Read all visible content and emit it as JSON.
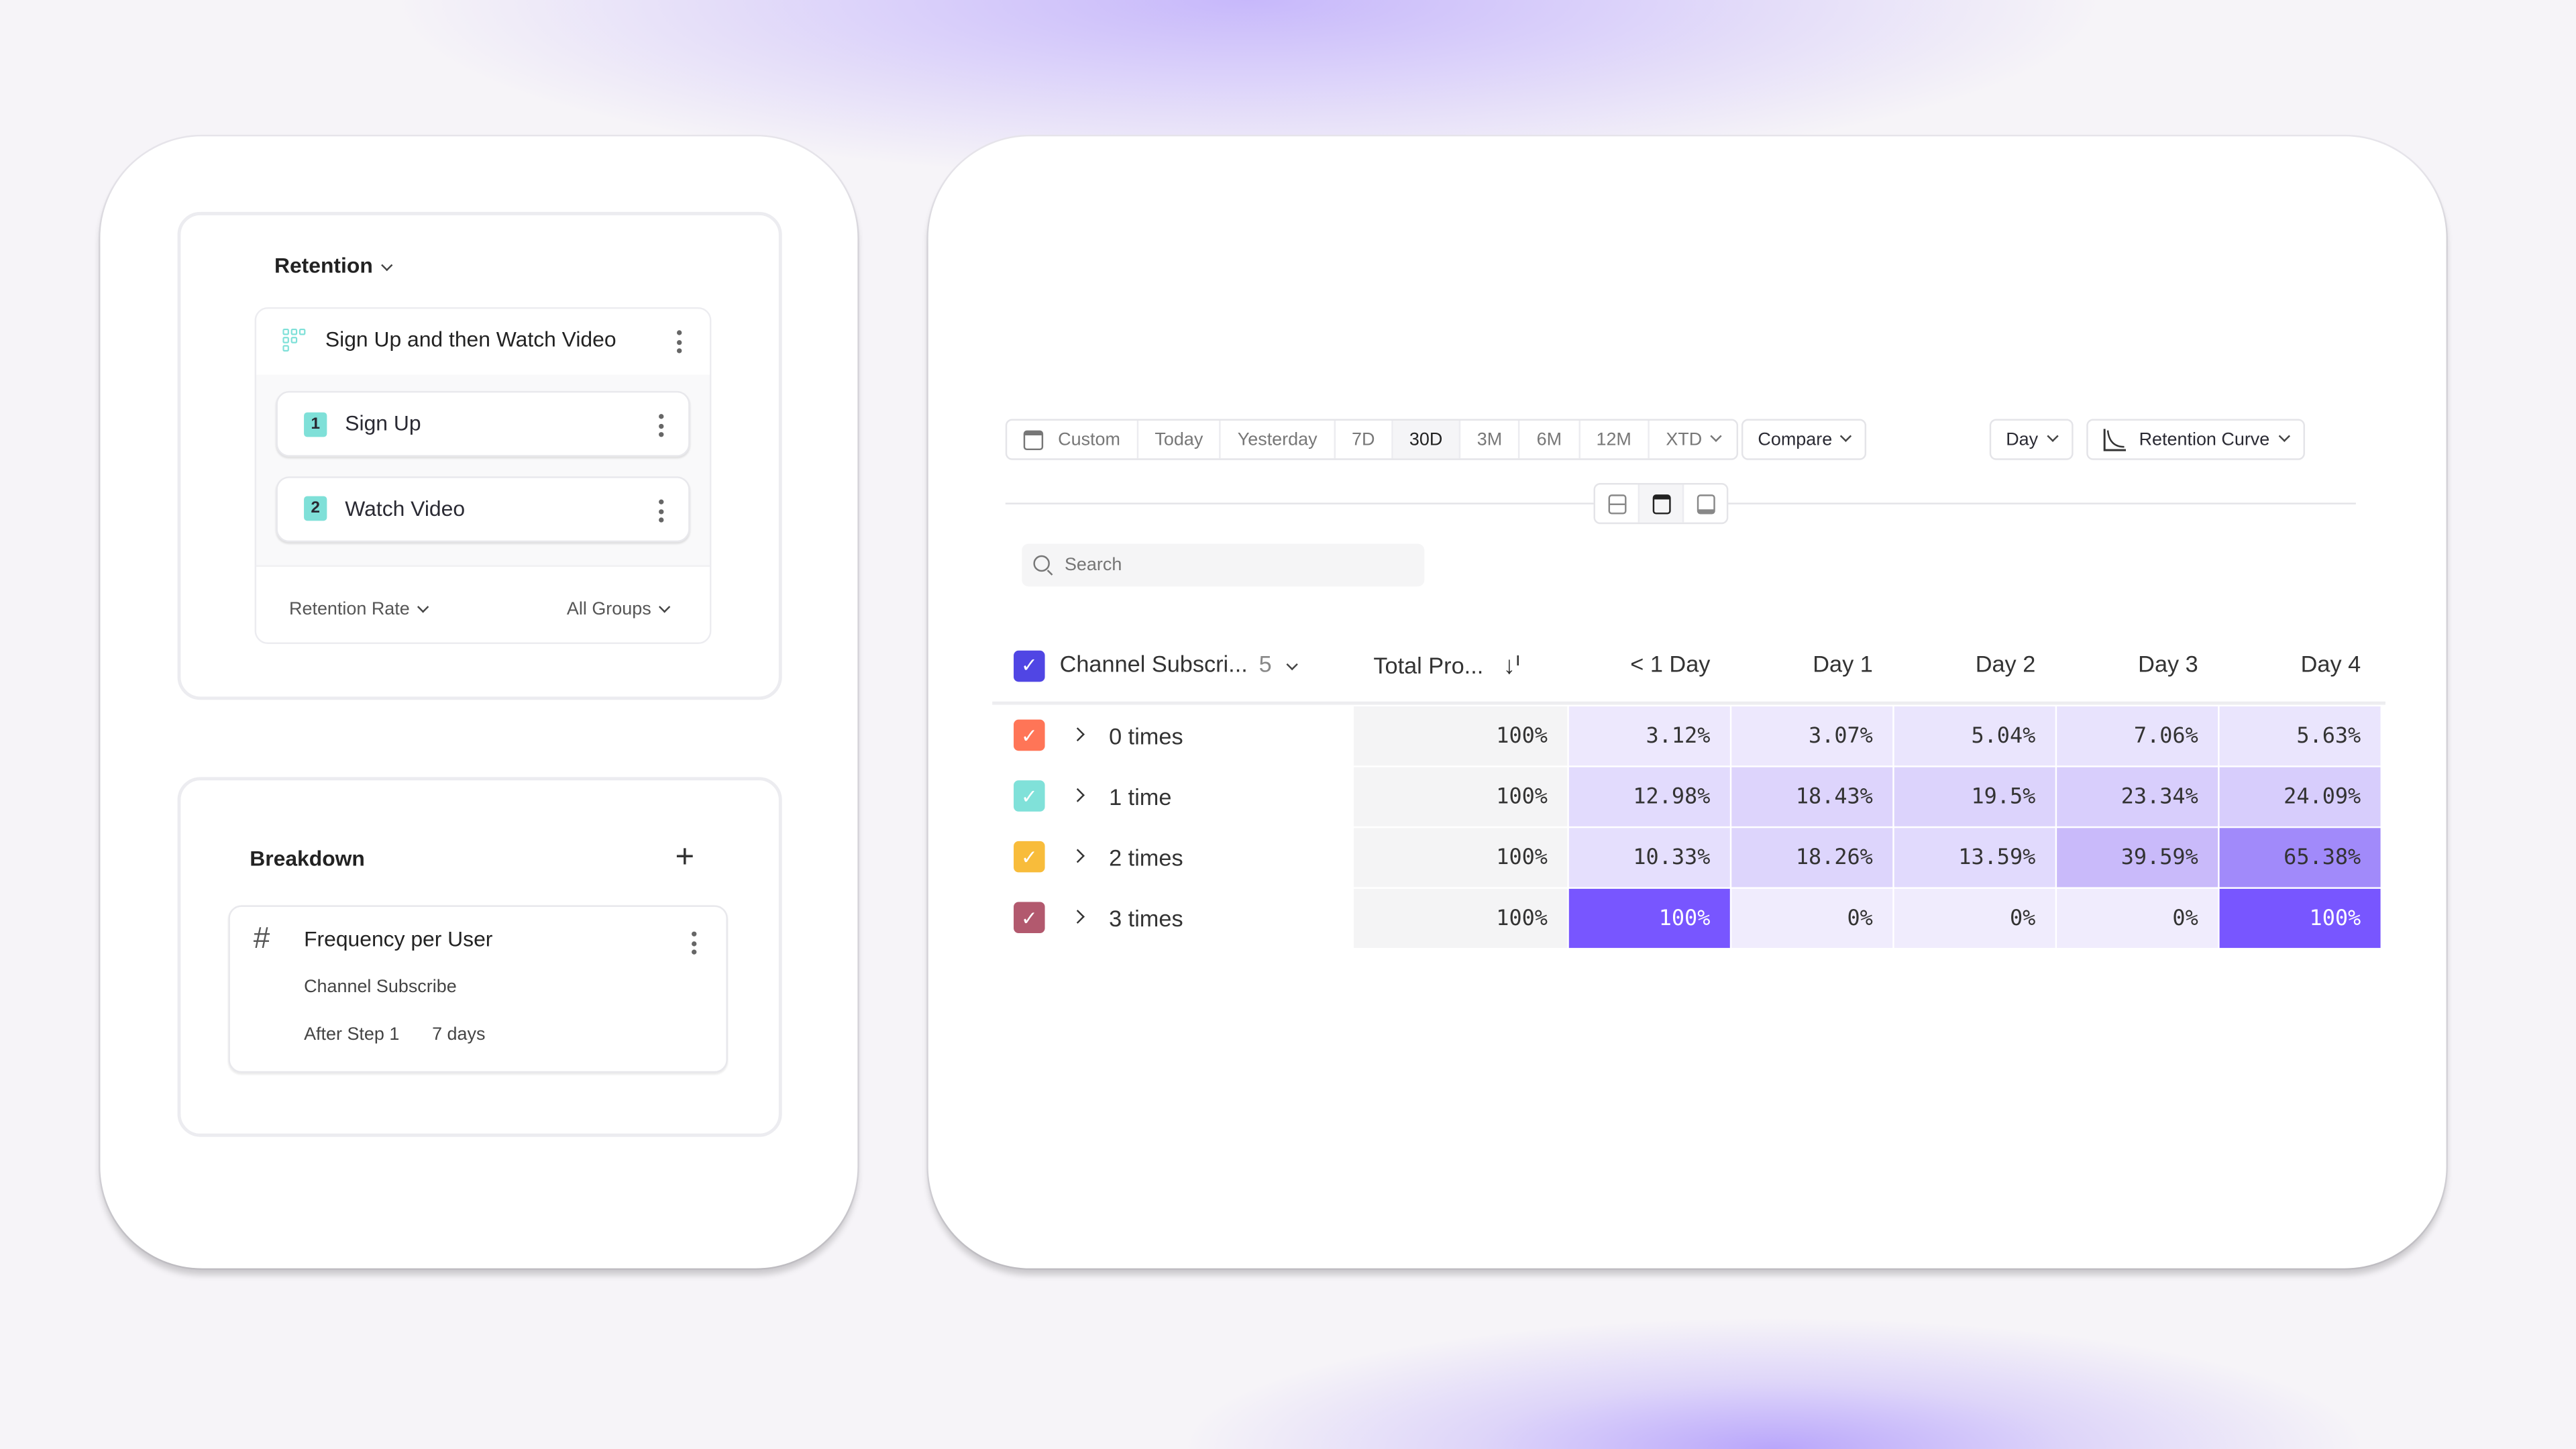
{
  "query": {
    "type_label": "Retention",
    "metric_name": "Sign Up and then Watch Video",
    "steps": [
      {
        "number": "1",
        "label": "Sign Up"
      },
      {
        "number": "2",
        "label": "Watch Video"
      }
    ],
    "measure_label": "Retention Rate",
    "groups_label": "All Groups",
    "accent": "#7fe0d8"
  },
  "breakdown": {
    "title": "Breakdown",
    "item_title": "Frequency per User",
    "event": "Channel Subscribe",
    "after_step": "After Step 1",
    "window": "7 days"
  },
  "toolbar": {
    "date_ranges": [
      "Custom",
      "Today",
      "Yesterday",
      "7D",
      "30D",
      "3M",
      "6M",
      "12M",
      "XTD"
    ],
    "active_range": "30D",
    "compare_label": "Compare",
    "interval_label": "Day",
    "chart_type_label": "Retention Curve"
  },
  "search": {
    "placeholder": "Search",
    "value": ""
  },
  "table": {
    "group_header": "Channel Subscri...",
    "group_count": "5",
    "total_header": "Total Pro...",
    "columns": [
      "< 1 Day",
      "Day 1",
      "Day 2",
      "Day 3",
      "Day 4"
    ],
    "rows": [
      {
        "label": "0 times",
        "color": "#ff7557",
        "total": "100%",
        "values": [
          "3.12%",
          "3.07%",
          "5.04%",
          "7.06%",
          "5.63%"
        ]
      },
      {
        "label": "1 time",
        "color": "#80e1d9",
        "total": "100%",
        "values": [
          "12.98%",
          "18.43%",
          "19.5%",
          "23.34%",
          "24.09%"
        ]
      },
      {
        "label": "2 times",
        "color": "#f8bc3b",
        "total": "100%",
        "values": [
          "10.33%",
          "18.26%",
          "13.59%",
          "39.59%",
          "65.38%"
        ]
      },
      {
        "label": "3 times",
        "color": "#b2596e",
        "total": "100%",
        "values": [
          "100%",
          "0%",
          "0%",
          "0%",
          "100%"
        ]
      }
    ],
    "heat_color": "#7856ff",
    "header_checkbox_color": "#5046e4"
  }
}
